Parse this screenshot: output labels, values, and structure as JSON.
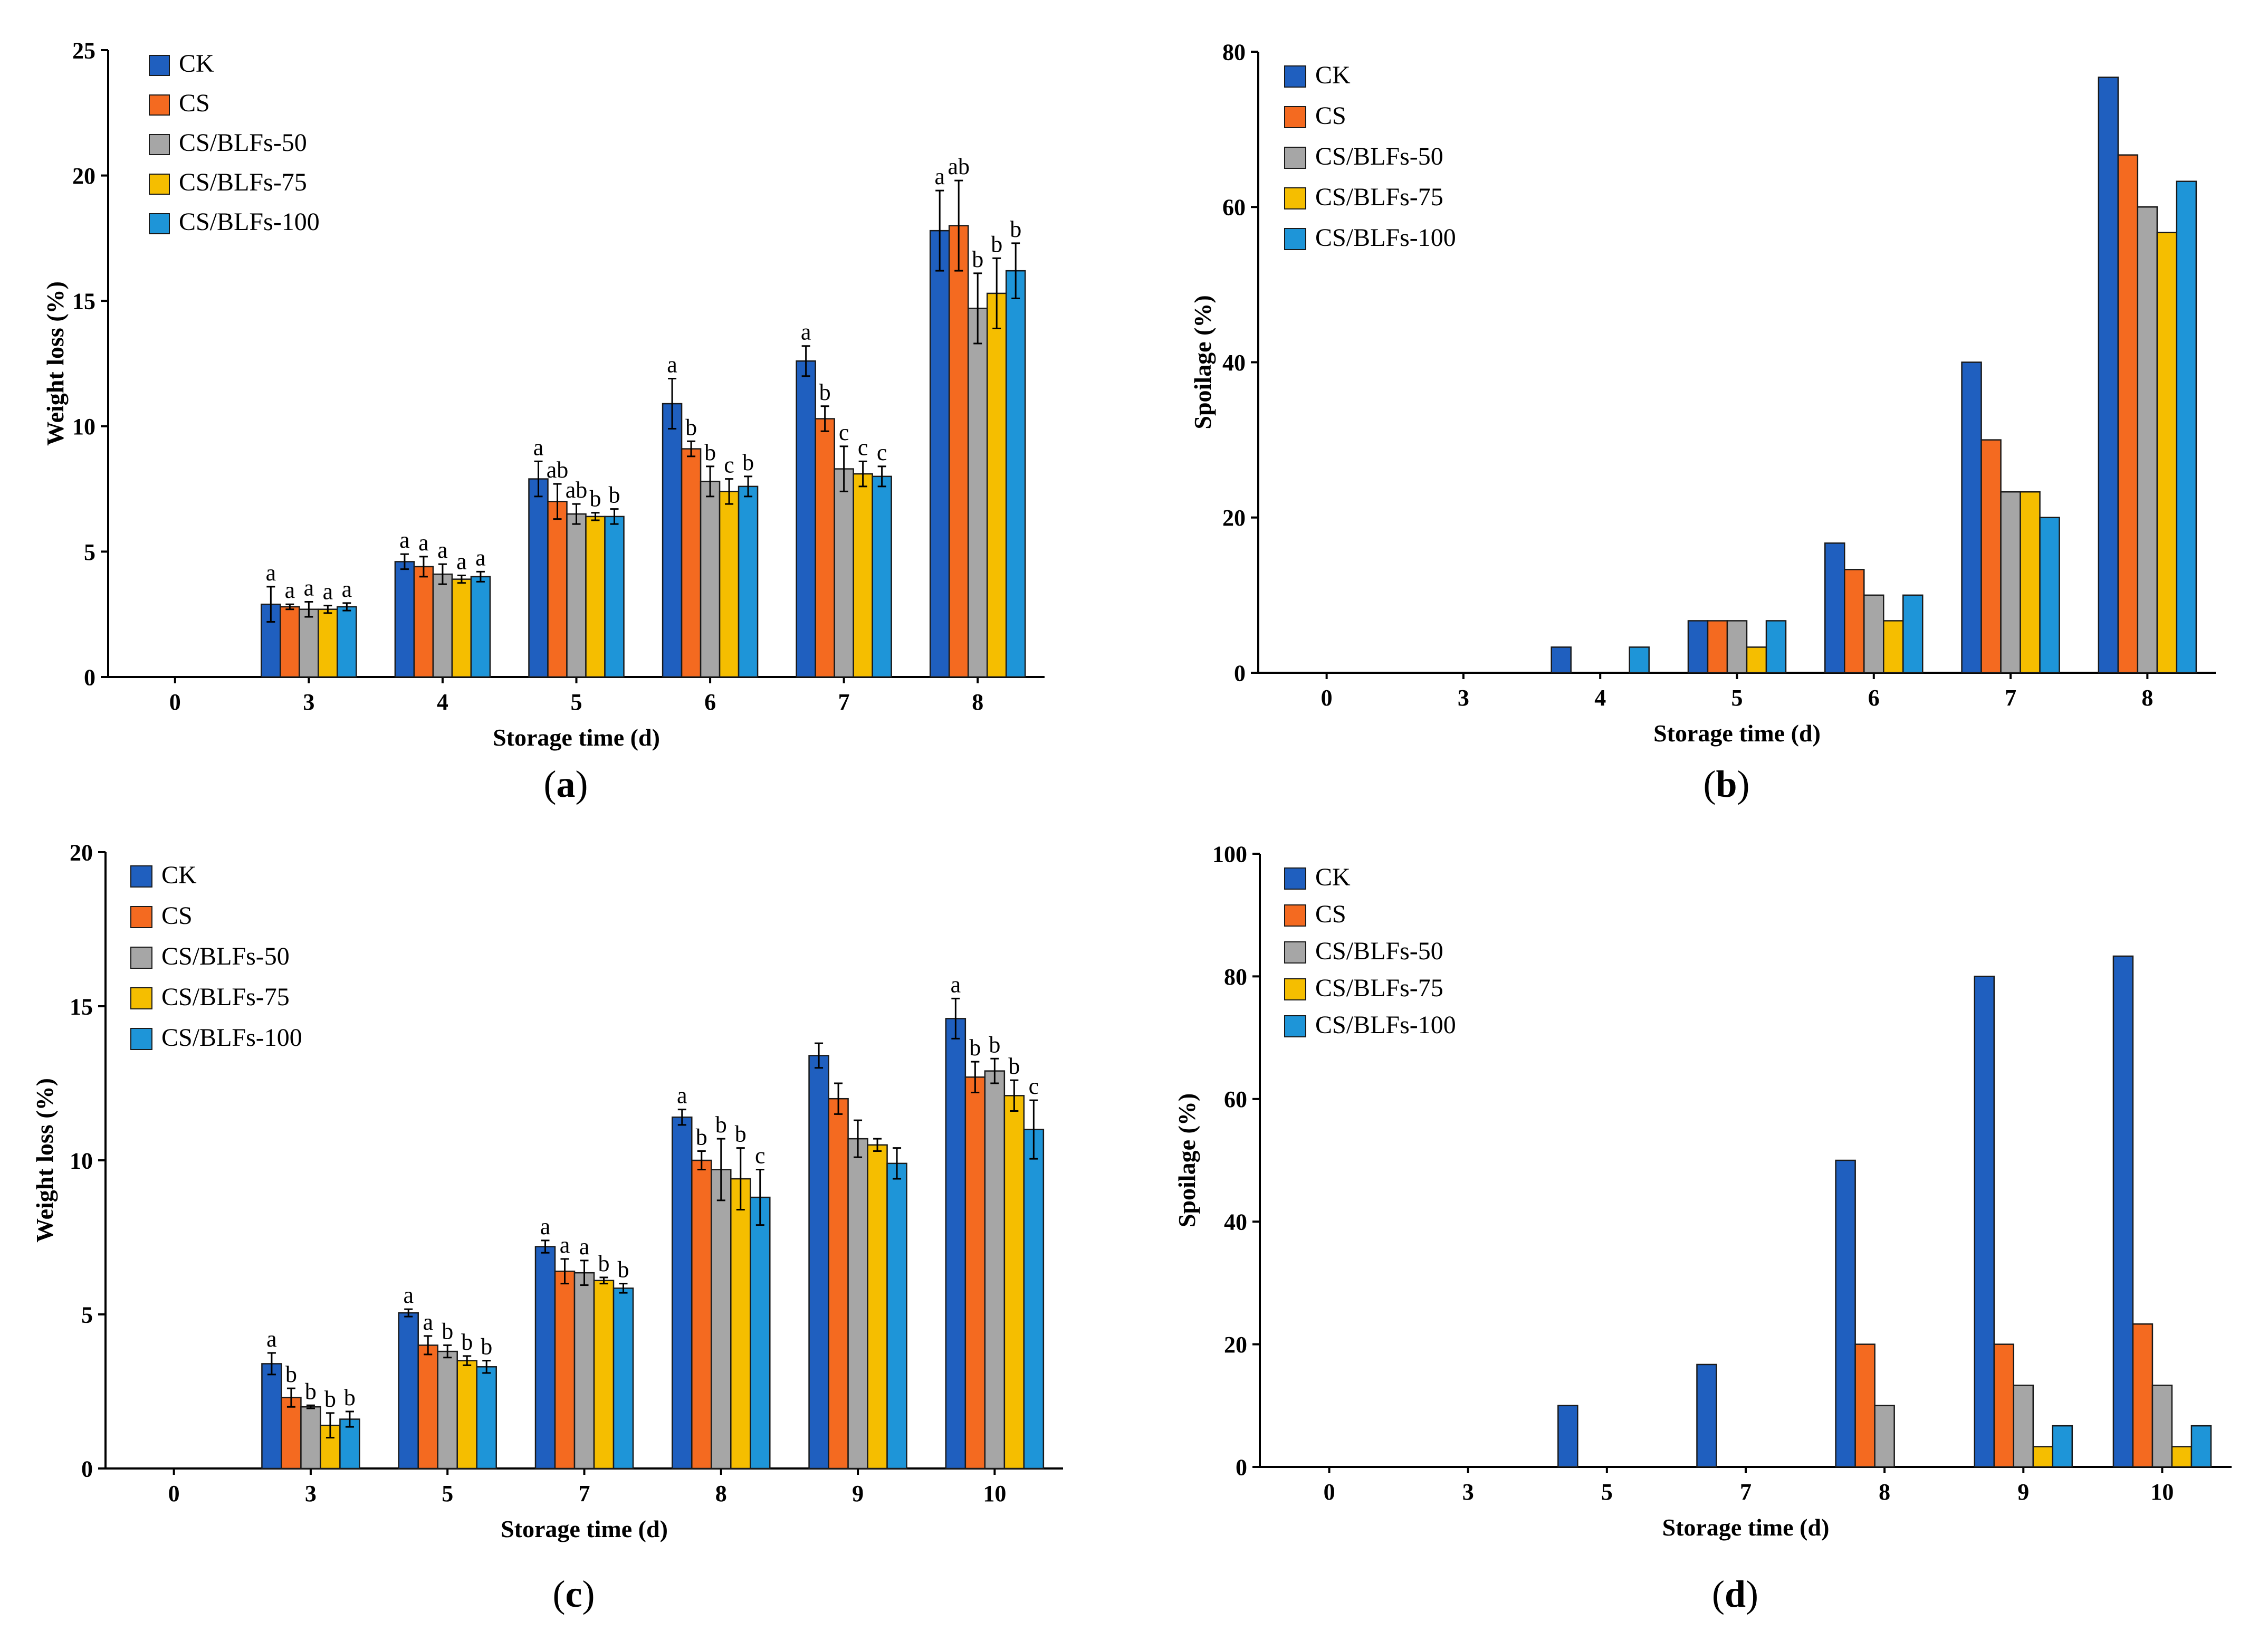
{
  "colors": {
    "CK": "#1f5fbf",
    "CS": "#f46a20",
    "CS/BLFs-50": "#a6a6a6",
    "CS/BLFs-75": "#f5be00",
    "CS/BLFs-100": "#1e95d8",
    "axis": "#000000"
  },
  "chart_data": [
    {
      "panel_label": "(a)",
      "type": "bar",
      "title": "",
      "xlabel": "Storage time (d)",
      "ylabel": "Weight loss (%)",
      "ylim": [
        0,
        25
      ],
      "yticks": [
        "0",
        "5",
        "10",
        "15",
        "20",
        "25"
      ],
      "grid": false,
      "legend_position": "top-left",
      "categories": [
        "0",
        "3",
        "4",
        "5",
        "6",
        "7",
        "8"
      ],
      "series": [
        {
          "name": "CK",
          "values": [
            0,
            2.9,
            4.6,
            7.9,
            10.9,
            12.6,
            17.8
          ],
          "errors": [
            0,
            0.7,
            0.3,
            0.7,
            1.0,
            0.6,
            1.6
          ],
          "labels": [
            "",
            "a",
            "a",
            "a",
            "a",
            "a",
            "a"
          ]
        },
        {
          "name": "CS",
          "values": [
            0,
            2.8,
            4.4,
            7.0,
            9.1,
            10.3,
            18.0
          ],
          "errors": [
            0,
            0.1,
            0.4,
            0.7,
            0.3,
            0.5,
            1.8
          ],
          "labels": [
            "",
            "a",
            "a",
            "ab",
            "b",
            "b",
            "ab"
          ]
        },
        {
          "name": "CS/BLFs-50",
          "values": [
            0,
            2.7,
            4.1,
            6.5,
            7.8,
            8.3,
            14.7
          ],
          "errors": [
            0,
            0.3,
            0.4,
            0.4,
            0.6,
            0.9,
            1.4
          ],
          "labels": [
            "",
            "a",
            "a",
            "ab",
            "b",
            "c",
            "b"
          ]
        },
        {
          "name": "CS/BLFs-75",
          "values": [
            0,
            2.7,
            3.9,
            6.4,
            7.4,
            8.1,
            15.3
          ],
          "errors": [
            0,
            0.15,
            0.15,
            0.15,
            0.5,
            0.5,
            1.4
          ],
          "labels": [
            "",
            "a",
            "a",
            "b",
            "c",
            "c",
            "b"
          ]
        },
        {
          "name": "CS/BLFs-100",
          "values": [
            0,
            2.8,
            4.0,
            6.4,
            7.6,
            8.0,
            16.2
          ],
          "errors": [
            0,
            0.15,
            0.2,
            0.3,
            0.4,
            0.4,
            1.1
          ],
          "labels": [
            "",
            "a",
            "a",
            "b",
            "b",
            "c",
            "b"
          ]
        }
      ]
    },
    {
      "panel_label": "(b)",
      "type": "bar",
      "title": "",
      "xlabel": "Storage time (d)",
      "ylabel": "Spoilage (%)",
      "ylim": [
        0,
        80
      ],
      "yticks": [
        "0",
        "20",
        "40",
        "60",
        "80"
      ],
      "grid": false,
      "legend_position": "top-left",
      "categories": [
        "0",
        "3",
        "4",
        "5",
        "6",
        "7",
        "8"
      ],
      "series": [
        {
          "name": "CK",
          "values": [
            0,
            0,
            3.3,
            6.7,
            16.7,
            40.0,
            76.7
          ]
        },
        {
          "name": "CS",
          "values": [
            0,
            0,
            0,
            6.7,
            13.3,
            30.0,
            66.7
          ]
        },
        {
          "name": "CS/BLFs-50",
          "values": [
            0,
            0,
            0,
            6.7,
            10.0,
            23.3,
            60.0
          ]
        },
        {
          "name": "CS/BLFs-75",
          "values": [
            0,
            0,
            0,
            3.3,
            6.7,
            23.3,
            56.7
          ]
        },
        {
          "name": "CS/BLFs-100",
          "values": [
            0,
            0,
            3.3,
            6.7,
            10.0,
            20.0,
            63.3
          ]
        }
      ]
    },
    {
      "panel_label": "(c)",
      "type": "bar",
      "title": "",
      "xlabel": "Storage time (d)",
      "ylabel": "Weight loss (%)",
      "ylim": [
        0,
        20
      ],
      "yticks": [
        "0",
        "5",
        "10",
        "15",
        "20"
      ],
      "grid": false,
      "legend_position": "top-left",
      "categories": [
        "0",
        "3",
        "5",
        "7",
        "8",
        "9",
        "10"
      ],
      "series": [
        {
          "name": "CK",
          "values": [
            0,
            3.4,
            5.05,
            7.2,
            11.4,
            13.4,
            14.6
          ],
          "errors": [
            0,
            0.35,
            0.12,
            0.2,
            0.25,
            0.4,
            0.65
          ],
          "labels": [
            "",
            "a",
            "a",
            "a",
            "a",
            "",
            "a"
          ]
        },
        {
          "name": "CS",
          "values": [
            0,
            2.3,
            4.0,
            6.4,
            10.0,
            12.0,
            12.7
          ],
          "errors": [
            0,
            0.3,
            0.3,
            0.4,
            0.3,
            0.5,
            0.5
          ],
          "labels": [
            "",
            "b",
            "a",
            "a",
            "b",
            "",
            "b"
          ]
        },
        {
          "name": "CS/BLFs-50",
          "values": [
            0,
            2.0,
            3.8,
            6.35,
            9.7,
            10.7,
            12.9
          ],
          "errors": [
            0,
            0.05,
            0.2,
            0.4,
            1.0,
            0.6,
            0.4
          ],
          "labels": [
            "",
            "b",
            "b",
            "a",
            "b",
            "",
            "b"
          ]
        },
        {
          "name": "CS/BLFs-75",
          "values": [
            0,
            1.4,
            3.5,
            6.1,
            9.4,
            10.5,
            12.1
          ],
          "errors": [
            0,
            0.4,
            0.15,
            0.1,
            1.0,
            0.2,
            0.5
          ],
          "labels": [
            "",
            "b",
            "b",
            "b",
            "b",
            "",
            "b"
          ]
        },
        {
          "name": "CS/BLFs-100",
          "values": [
            0,
            1.6,
            3.3,
            5.85,
            8.8,
            9.9,
            11.0
          ],
          "errors": [
            0,
            0.25,
            0.2,
            0.15,
            0.9,
            0.5,
            0.95
          ],
          "labels": [
            "",
            "b",
            "b",
            "b",
            "c",
            "",
            "c"
          ]
        }
      ]
    },
    {
      "panel_label": "(d)",
      "type": "bar",
      "title": "",
      "xlabel": "Storage time (d)",
      "ylabel": "Spoilage (%)",
      "ylim": [
        0,
        100
      ],
      "yticks": [
        "0",
        "20",
        "40",
        "60",
        "80",
        "100"
      ],
      "grid": false,
      "legend_position": "top-left",
      "categories": [
        "0",
        "3",
        "5",
        "7",
        "8",
        "9",
        "10"
      ],
      "series": [
        {
          "name": "CK",
          "values": [
            0,
            0,
            10.0,
            16.7,
            50.0,
            80.0,
            83.3
          ]
        },
        {
          "name": "CS",
          "values": [
            0,
            0,
            0,
            0,
            20.0,
            20.0,
            23.3
          ]
        },
        {
          "name": "CS/BLFs-50",
          "values": [
            0,
            0,
            0,
            0,
            10.0,
            13.3,
            13.3
          ]
        },
        {
          "name": "CS/BLFs-75",
          "values": [
            0,
            0,
            0,
            0,
            0,
            3.3,
            3.3
          ]
        },
        {
          "name": "CS/BLFs-100",
          "values": [
            0,
            0,
            0,
            0,
            0,
            6.7,
            6.7
          ]
        }
      ]
    }
  ]
}
